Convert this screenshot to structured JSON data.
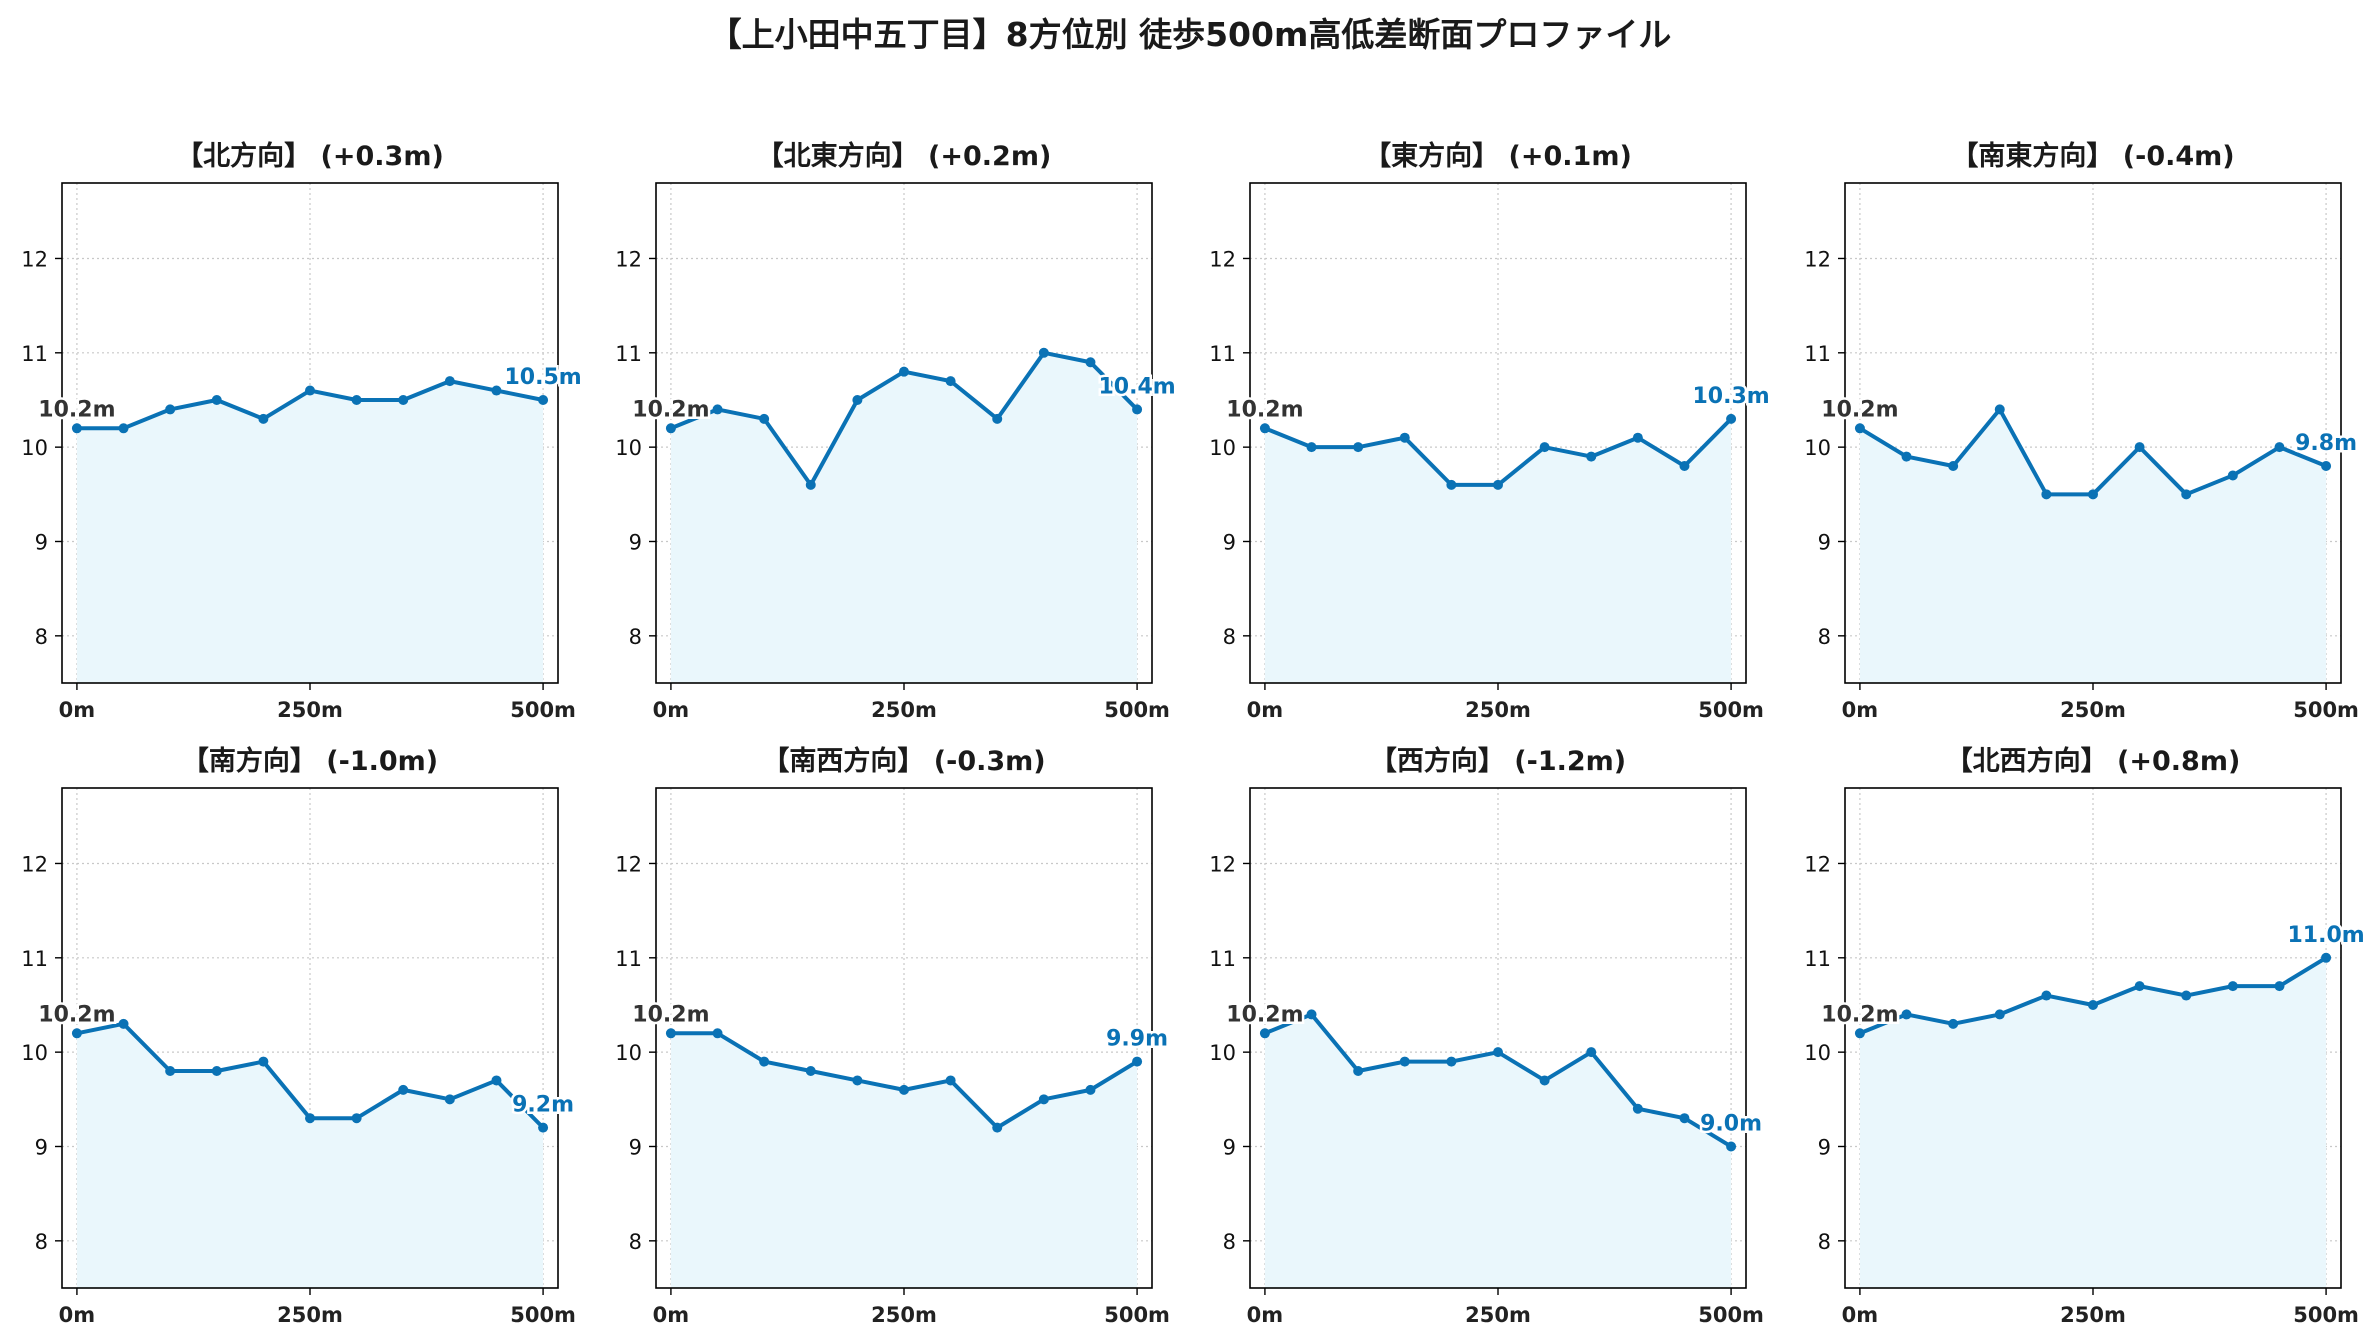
{
  "figure": {
    "title": "【上小田中五丁目】8方位別 徒歩500m高低差断面プロファイル"
  },
  "colors": {
    "line": "#0a72b5",
    "fill": "#eaf7fc",
    "start_label": "#333333",
    "end_label": "#0a72b5",
    "grid": "#c8c8c8",
    "axis": "#000000"
  },
  "chart_data": [
    {
      "type": "line",
      "title": "【北方向】 (+0.3m)",
      "x": [
        0,
        50,
        100,
        150,
        200,
        250,
        300,
        350,
        400,
        450,
        500
      ],
      "values": [
        10.2,
        10.2,
        10.4,
        10.5,
        10.3,
        10.6,
        10.5,
        10.5,
        10.7,
        10.6,
        10.5
      ],
      "x_tick_values": [
        0,
        250,
        500
      ],
      "x_tick_labels": [
        "0m",
        "250m",
        "500m"
      ],
      "y_ticks": [
        8,
        9,
        10,
        11,
        12
      ],
      "xlim": [
        -16,
        516
      ],
      "ylim": [
        7.5,
        12.8
      ],
      "grid": true,
      "start_label": "10.2m",
      "end_label": "10.5m"
    },
    {
      "type": "line",
      "title": "【北東方向】 (+0.2m)",
      "x": [
        0,
        50,
        100,
        150,
        200,
        250,
        300,
        350,
        400,
        450,
        500
      ],
      "values": [
        10.2,
        10.4,
        10.3,
        9.6,
        10.5,
        10.8,
        10.7,
        10.3,
        11.0,
        10.9,
        10.4
      ],
      "x_tick_values": [
        0,
        250,
        500
      ],
      "x_tick_labels": [
        "0m",
        "250m",
        "500m"
      ],
      "y_ticks": [
        8,
        9,
        10,
        11,
        12
      ],
      "xlim": [
        -16,
        516
      ],
      "ylim": [
        7.5,
        12.8
      ],
      "grid": true,
      "start_label": "10.2m",
      "end_label": "10.4m"
    },
    {
      "type": "line",
      "title": "【東方向】 (+0.1m)",
      "x": [
        0,
        50,
        100,
        150,
        200,
        250,
        300,
        350,
        400,
        450,
        500
      ],
      "values": [
        10.2,
        10.0,
        10.0,
        10.1,
        9.6,
        9.6,
        10.0,
        9.9,
        10.1,
        9.8,
        10.3
      ],
      "x_tick_values": [
        0,
        250,
        500
      ],
      "x_tick_labels": [
        "0m",
        "250m",
        "500m"
      ],
      "y_ticks": [
        8,
        9,
        10,
        11,
        12
      ],
      "xlim": [
        -16,
        516
      ],
      "ylim": [
        7.5,
        12.8
      ],
      "grid": true,
      "start_label": "10.2m",
      "end_label": "10.3m"
    },
    {
      "type": "line",
      "title": "【南東方向】 (-0.4m)",
      "x": [
        0,
        50,
        100,
        150,
        200,
        250,
        300,
        350,
        400,
        450,
        500
      ],
      "values": [
        10.2,
        9.9,
        9.8,
        10.4,
        9.5,
        9.5,
        10.0,
        9.5,
        9.7,
        10.0,
        9.8
      ],
      "x_tick_values": [
        0,
        250,
        500
      ],
      "x_tick_labels": [
        "0m",
        "250m",
        "500m"
      ],
      "y_ticks": [
        8,
        9,
        10,
        11,
        12
      ],
      "xlim": [
        -16,
        516
      ],
      "ylim": [
        7.5,
        12.8
      ],
      "grid": true,
      "start_label": "10.2m",
      "end_label": "9.8m"
    },
    {
      "type": "line",
      "title": "【南方向】 (-1.0m)",
      "x": [
        0,
        50,
        100,
        150,
        200,
        250,
        300,
        350,
        400,
        450,
        500
      ],
      "values": [
        10.2,
        10.3,
        9.8,
        9.8,
        9.9,
        9.3,
        9.3,
        9.6,
        9.5,
        9.7,
        9.2
      ],
      "x_tick_values": [
        0,
        250,
        500
      ],
      "x_tick_labels": [
        "0m",
        "250m",
        "500m"
      ],
      "y_ticks": [
        8,
        9,
        10,
        11,
        12
      ],
      "xlim": [
        -16,
        516
      ],
      "ylim": [
        7.5,
        12.8
      ],
      "grid": true,
      "start_label": "10.2m",
      "end_label": "9.2m"
    },
    {
      "type": "line",
      "title": "【南西方向】 (-0.3m)",
      "x": [
        0,
        50,
        100,
        150,
        200,
        250,
        300,
        350,
        400,
        450,
        500
      ],
      "values": [
        10.2,
        10.2,
        9.9,
        9.8,
        9.7,
        9.6,
        9.7,
        9.2,
        9.5,
        9.6,
        9.9
      ],
      "x_tick_values": [
        0,
        250,
        500
      ],
      "x_tick_labels": [
        "0m",
        "250m",
        "500m"
      ],
      "y_ticks": [
        8,
        9,
        10,
        11,
        12
      ],
      "xlim": [
        -16,
        516
      ],
      "ylim": [
        7.5,
        12.8
      ],
      "grid": true,
      "start_label": "10.2m",
      "end_label": "9.9m"
    },
    {
      "type": "line",
      "title": "【西方向】 (-1.2m)",
      "x": [
        0,
        50,
        100,
        150,
        200,
        250,
        300,
        350,
        400,
        450,
        500
      ],
      "values": [
        10.2,
        10.4,
        9.8,
        9.9,
        9.9,
        10.0,
        9.7,
        10.0,
        9.4,
        9.3,
        9.0
      ],
      "x_tick_values": [
        0,
        250,
        500
      ],
      "x_tick_labels": [
        "0m",
        "250m",
        "500m"
      ],
      "y_ticks": [
        8,
        9,
        10,
        11,
        12
      ],
      "xlim": [
        -16,
        516
      ],
      "ylim": [
        7.5,
        12.8
      ],
      "grid": true,
      "start_label": "10.2m",
      "end_label": "9.0m"
    },
    {
      "type": "line",
      "title": "【北西方向】 (+0.8m)",
      "x": [
        0,
        50,
        100,
        150,
        200,
        250,
        300,
        350,
        400,
        450,
        500
      ],
      "values": [
        10.2,
        10.4,
        10.3,
        10.4,
        10.6,
        10.5,
        10.7,
        10.6,
        10.7,
        10.7,
        11.0
      ],
      "x_tick_values": [
        0,
        250,
        500
      ],
      "x_tick_labels": [
        "0m",
        "250m",
        "500m"
      ],
      "y_ticks": [
        8,
        9,
        10,
        11,
        12
      ],
      "xlim": [
        -16,
        516
      ],
      "ylim": [
        7.5,
        12.8
      ],
      "grid": true,
      "start_label": "10.2m",
      "end_label": "11.0m"
    }
  ]
}
